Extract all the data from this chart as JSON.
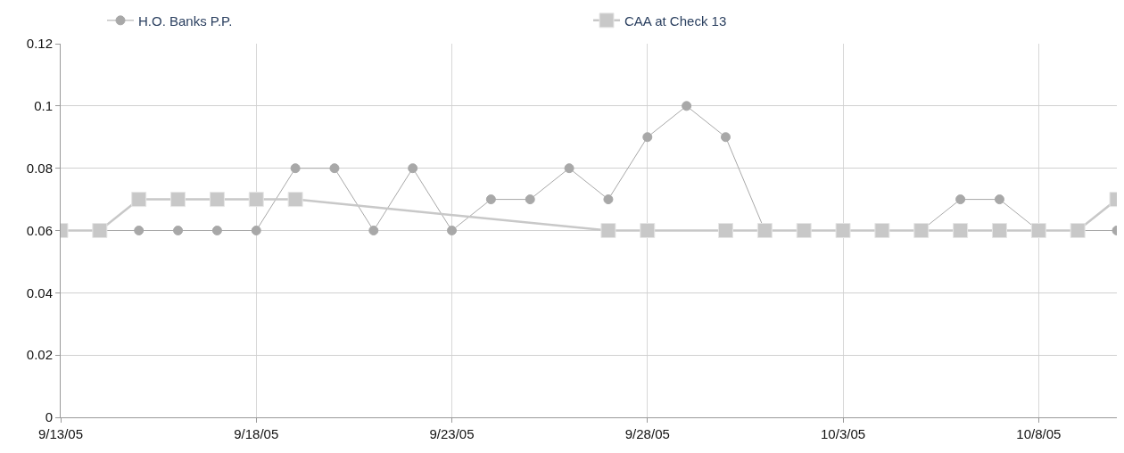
{
  "chart_data": {
    "type": "line",
    "series": [
      {
        "name": "H.O. Banks P.P.",
        "color": "#a8a8a8",
        "marker": "circle",
        "x": [
          "--09-13",
          "--09-14",
          "--09-15",
          "--09-16",
          "--09-17",
          "--09-18",
          "--09-19",
          "--09-20",
          "--09-21",
          "--09-22",
          "--09-23",
          "--09-24",
          "--09-25",
          "--09-26",
          "--09-27",
          "--09-28",
          "--09-29",
          "--09-30",
          "--10-01",
          "--10-02",
          "--10-03",
          "--10-04",
          "--10-05",
          "--10-06",
          "--10-07",
          "--10-08",
          "--10-09",
          "--10-10"
        ],
        "values": [
          0.06,
          0.06,
          0.06,
          0.06,
          0.06,
          0.06,
          0.08,
          0.08,
          0.06,
          0.08,
          0.06,
          0.07,
          0.07,
          0.08,
          0.07,
          0.09,
          0.1,
          0.09,
          0.06,
          0.06,
          0.06,
          0.06,
          0.06,
          0.07,
          0.07,
          0.06,
          0.06,
          0.06
        ]
      },
      {
        "name": "CAA at Check 13",
        "color": "#c8c8c8",
        "marker": "square",
        "x": [
          "--09-13",
          "--09-14",
          "--09-15",
          "--09-16",
          "--09-17",
          "--09-18",
          "--09-19",
          "--09-27",
          "--09-28",
          "--09-30",
          "--10-01",
          "--10-02",
          "--10-03",
          "--10-04",
          "--10-05",
          "--10-06",
          "--10-07",
          "--10-08",
          "--10-09",
          "--10-10"
        ],
        "values": [
          0.06,
          0.06,
          0.07,
          0.07,
          0.07,
          0.07,
          0.07,
          0.06,
          0.06,
          0.06,
          0.06,
          0.06,
          0.06,
          0.06,
          0.06,
          0.06,
          0.06,
          0.06,
          0.06,
          0.07
        ]
      }
    ],
    "xlim": [
      "--09-13",
      "--10-10"
    ],
    "xticks": [
      {
        "value": "--09-13",
        "label": "9/13/05"
      },
      {
        "value": "--09-18",
        "label": "9/18/05"
      },
      {
        "value": "--09-23",
        "label": "9/23/05"
      },
      {
        "value": "--09-28",
        "label": "9/28/05"
      },
      {
        "value": "--10-03",
        "label": "10/3/05"
      },
      {
        "value": "--10-08",
        "label": "10/8/05"
      }
    ],
    "ylim": [
      0,
      0.12
    ],
    "yticks": [
      0,
      0.02,
      0.04,
      0.06,
      0.08,
      0.1,
      0.12
    ],
    "grid": true,
    "legend": "top"
  }
}
